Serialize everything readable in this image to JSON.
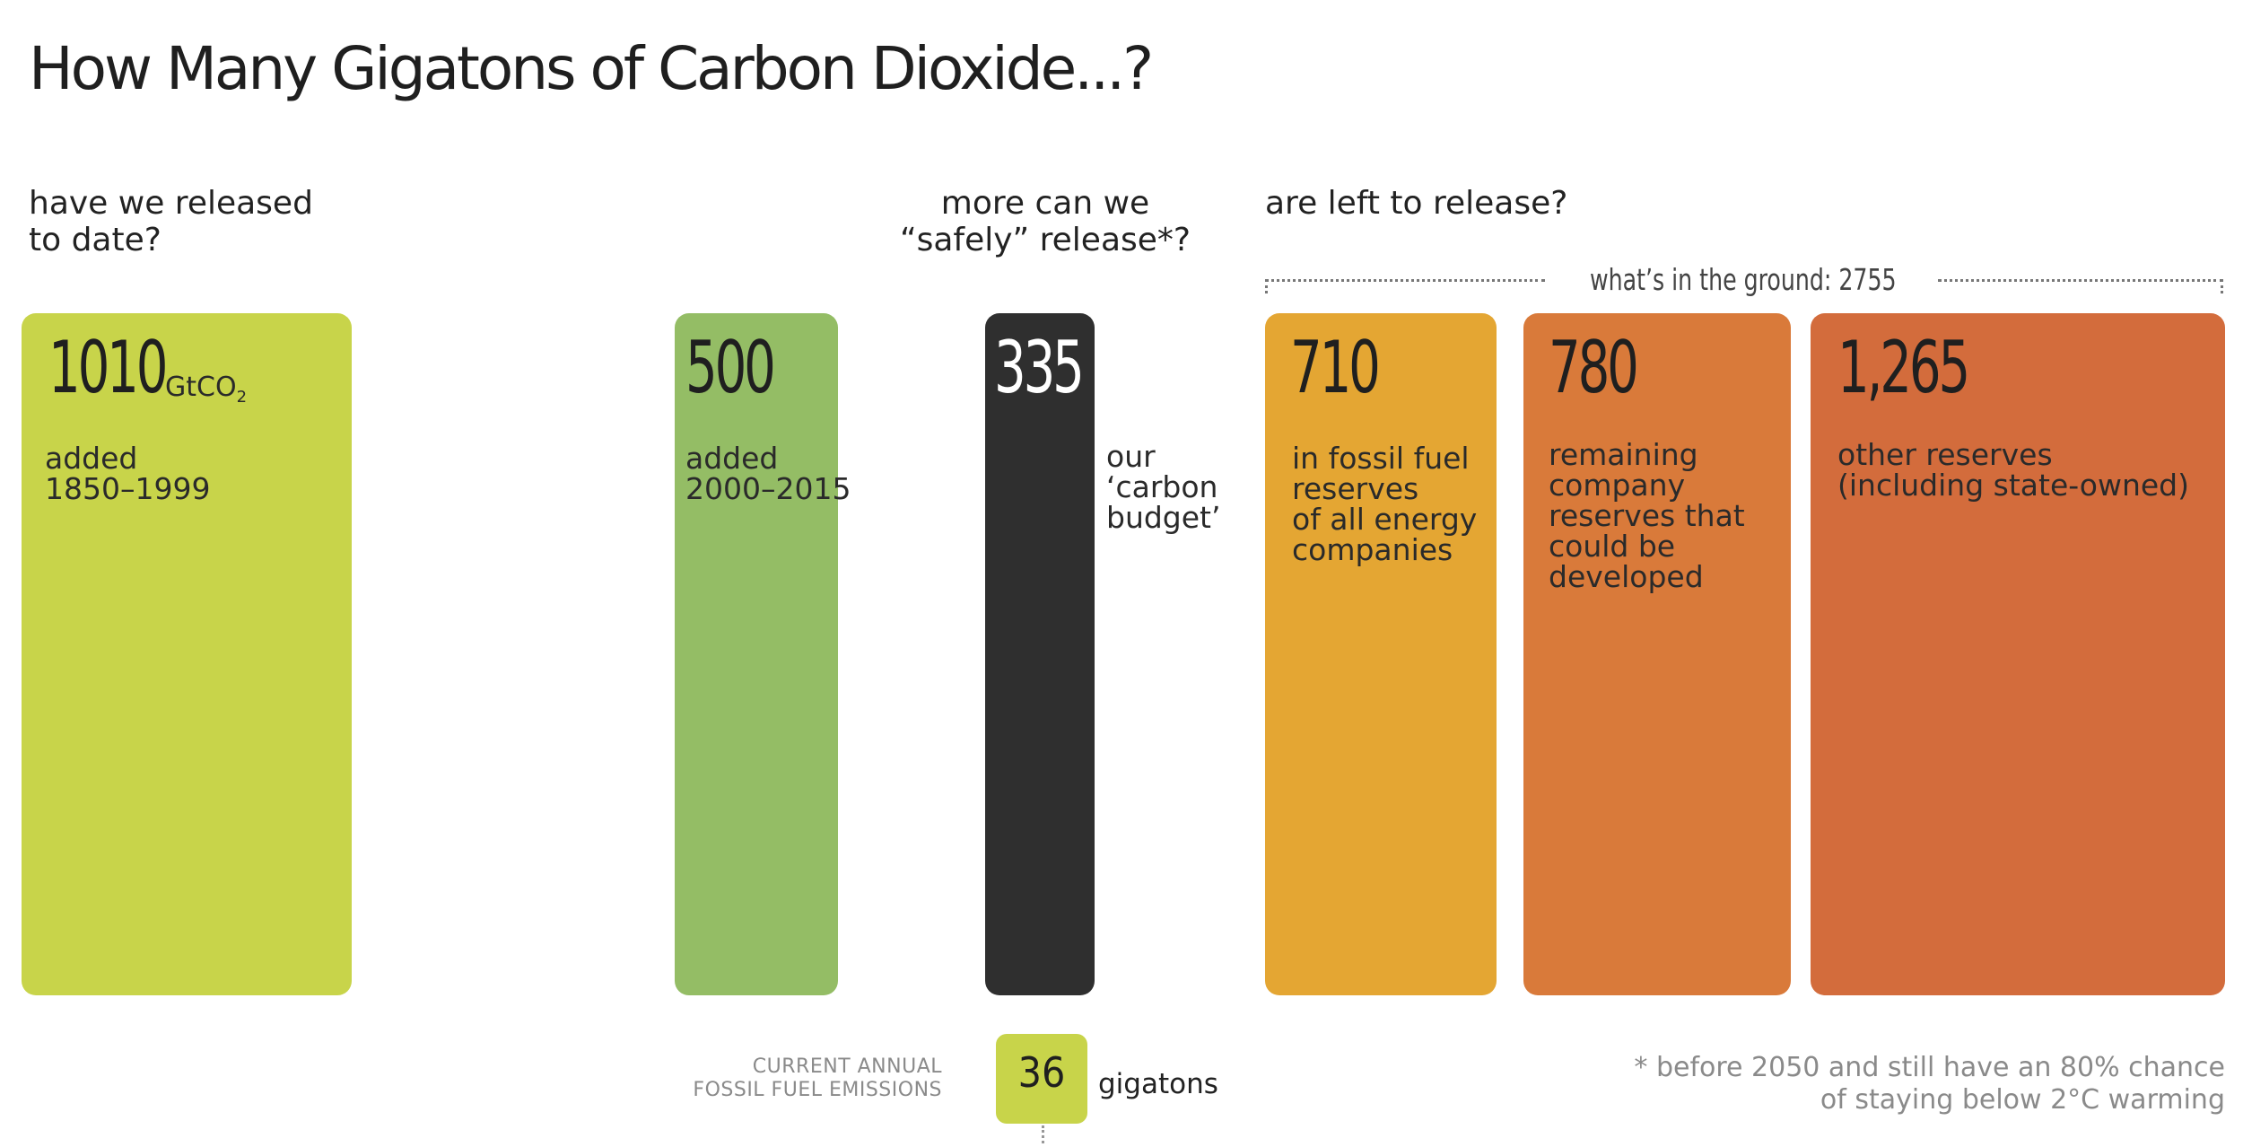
{
  "chart_data": {
    "type": "bar",
    "title": "How Many Gigatons of Carbon Dioxide...?",
    "unit": "GtCO2",
    "questions": {
      "released": [
        "have we released",
        "to date?"
      ],
      "safe": [
        "more can we",
        "“safely” release*?"
      ],
      "left": [
        "are left to release?"
      ]
    },
    "ground_label": "what’s in the ground: 2755",
    "categories": [
      "1010",
      "500",
      "335",
      "710",
      "780",
      "1,265"
    ],
    "bars": [
      {
        "value": 1010,
        "label": "1010",
        "unit_text": "GtCO",
        "unit_sub": "2",
        "description": [
          "added",
          "1850–1999"
        ],
        "color": "#c8d44a"
      },
      {
        "value": 500,
        "label": "500",
        "description": [
          "added",
          "2000–2015"
        ],
        "color": "#94bd65"
      },
      {
        "value": 335,
        "label": "335",
        "description": [
          "our",
          "‘carbon",
          "budget’"
        ],
        "color": "#2f2f2f"
      },
      {
        "value": 710,
        "label": "710",
        "description": [
          "in fossil fuel",
          "reserves",
          "of all energy",
          "companies"
        ],
        "color": "#e4a633"
      },
      {
        "value": 780,
        "label": "780",
        "description": [
          "remaining",
          "company",
          "reserves that",
          "could be",
          "developed"
        ],
        "color": "#d97a3a"
      },
      {
        "value": 1265,
        "label": "1,265",
        "description": [
          "other reserves",
          "(including state-owned)"
        ],
        "color": "#d36c3c"
      }
    ],
    "current_emissions": {
      "value": 36,
      "label": "36",
      "unit": "gigatons",
      "caption": [
        "CURRENT ANNUAL",
        "FOSSIL FUEL EMISSIONS"
      ],
      "color": "#c8d44a"
    },
    "footnote": [
      "* before 2050 and still have an 80% chance",
      "of staying below 2°C warming"
    ]
  }
}
